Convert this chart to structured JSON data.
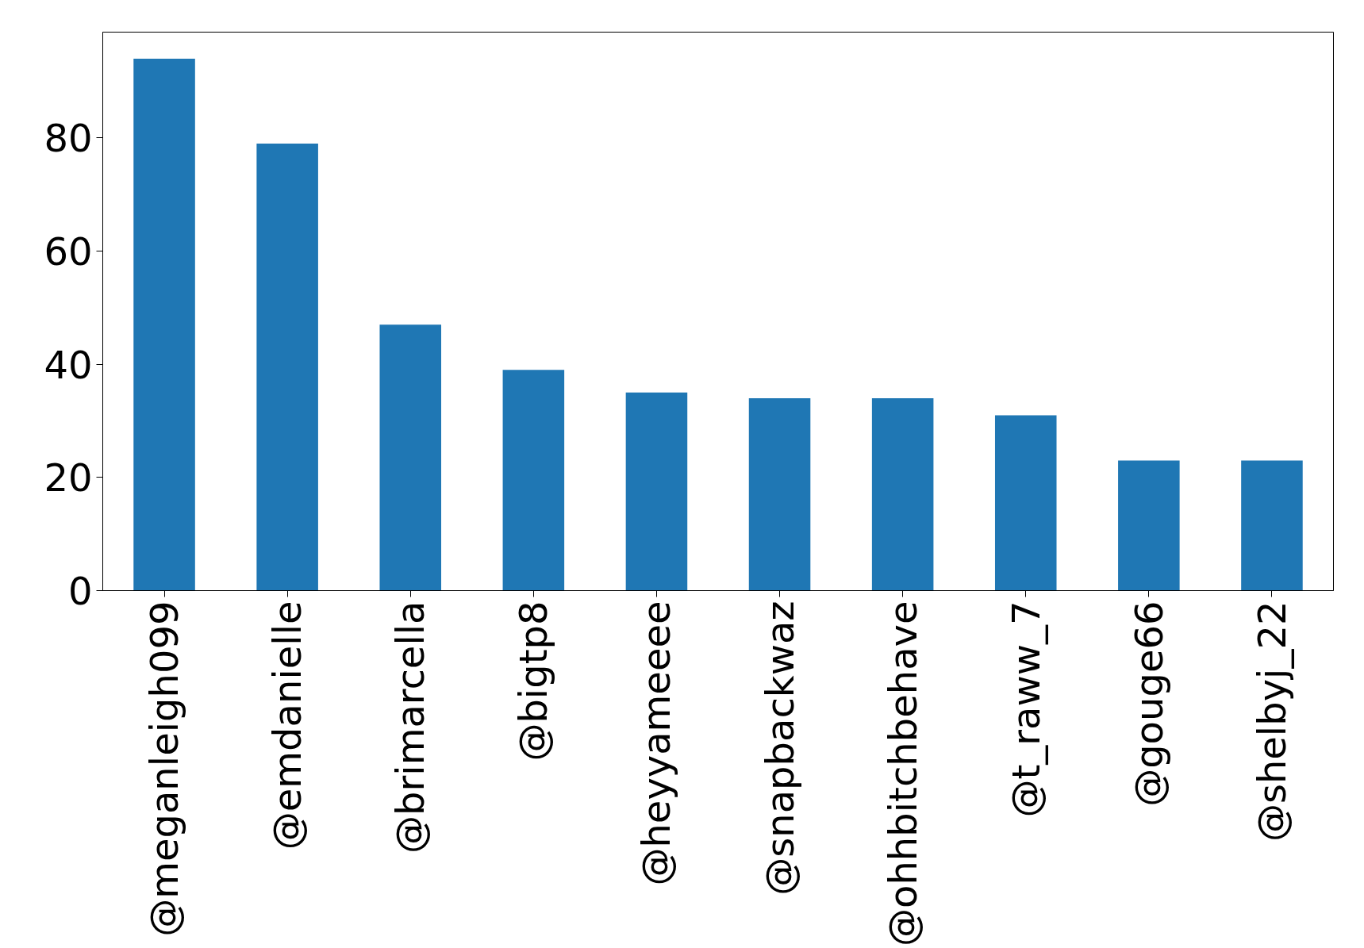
{
  "chart_data": {
    "type": "bar",
    "categories": [
      "@meganleigh099",
      "@emdanielle",
      "@brimarcella",
      "@bigtp8",
      "@heyyameeee",
      "@snapbackwaz",
      "@ohhbitchbehave",
      "@t_raww_7",
      "@gouge66",
      "@shelbyj_22"
    ],
    "values": [
      94,
      79,
      47,
      39,
      35,
      34,
      34,
      31,
      23,
      23
    ],
    "color": "#1f77b4",
    "ylim": [
      0,
      98.7
    ],
    "yticks": [
      0,
      20,
      40,
      60,
      80
    ],
    "grid": false
  }
}
